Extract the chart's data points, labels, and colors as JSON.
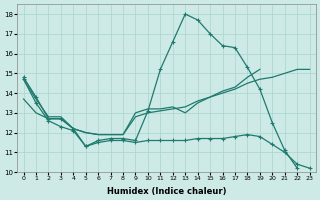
{
  "lines": [
    {
      "x": [
        0,
        1,
        2,
        3,
        4,
        5,
        6,
        7,
        8,
        9,
        10,
        11,
        12,
        13,
        14,
        15,
        16,
        17,
        18,
        19,
        20,
        21,
        22
      ],
      "y": [
        14.8,
        13.8,
        12.7,
        12.7,
        12.2,
        11.3,
        11.6,
        11.7,
        11.7,
        11.6,
        13.1,
        15.2,
        16.6,
        18.0,
        17.7,
        17.0,
        16.4,
        16.3,
        15.3,
        14.2,
        12.5,
        11.1,
        10.2
      ],
      "has_marker": true
    },
    {
      "x": [
        0,
        1,
        2,
        3,
        4,
        5,
        6,
        7,
        8,
        9,
        10,
        11,
        12,
        13,
        14,
        15,
        16,
        17,
        18,
        19
      ],
      "y": [
        14.7,
        13.7,
        12.8,
        12.8,
        12.2,
        12.0,
        11.9,
        11.9,
        11.9,
        13.0,
        13.2,
        13.2,
        13.3,
        13.0,
        13.5,
        13.8,
        14.1,
        14.3,
        14.8,
        15.2
      ],
      "has_marker": false
    },
    {
      "x": [
        0,
        1,
        2,
        3,
        4,
        5,
        6,
        7,
        8,
        9,
        10,
        11,
        12,
        13,
        14,
        15,
        16,
        17,
        18,
        19,
        20,
        21,
        22,
        23
      ],
      "y": [
        13.7,
        13.0,
        12.7,
        12.7,
        12.2,
        12.0,
        11.9,
        11.9,
        11.9,
        12.8,
        13.0,
        13.1,
        13.2,
        13.3,
        13.6,
        13.8,
        14.0,
        14.2,
        14.5,
        14.7,
        14.8,
        15.0,
        15.2,
        15.2
      ],
      "has_marker": false
    },
    {
      "x": [
        0,
        1,
        2,
        3,
        4,
        5,
        6,
        7,
        8,
        9,
        10,
        11,
        12,
        13,
        14,
        15,
        16,
        17,
        18,
        19,
        20,
        21,
        22,
        23
      ],
      "y": [
        14.7,
        13.5,
        12.6,
        12.3,
        12.1,
        11.3,
        11.5,
        11.6,
        11.6,
        11.5,
        11.6,
        11.6,
        11.6,
        11.6,
        11.7,
        11.7,
        11.7,
        11.8,
        11.9,
        11.8,
        11.4,
        11.0,
        10.4,
        10.2
      ],
      "has_marker": true
    }
  ],
  "bg_color": "#ceeae7",
  "grid_color": "#aad4d0",
  "line_color": "#1f7a6e",
  "xlabel": "Humidex (Indice chaleur)",
  "xlim": [
    -0.5,
    23.5
  ],
  "ylim": [
    10,
    18.5
  ],
  "yticks": [
    10,
    11,
    12,
    13,
    14,
    15,
    16,
    17,
    18
  ],
  "xtick_labels": [
    "0",
    "1",
    "2",
    "3",
    "4",
    "5",
    "6",
    "7",
    "8",
    "9",
    "10",
    "11",
    "12",
    "13",
    "14",
    "15",
    "16",
    "17",
    "18",
    "19",
    "20",
    "21",
    "22",
    "23"
  ],
  "figsize": [
    3.2,
    2.0
  ],
  "dpi": 100
}
